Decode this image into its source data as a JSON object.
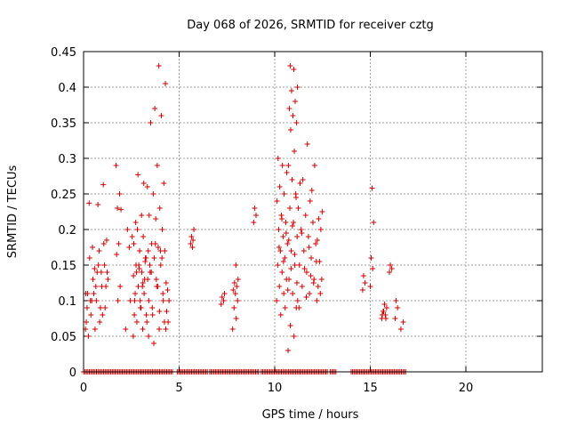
{
  "chart_data": {
    "type": "scatter",
    "title": "Day 068 of 2026, SRMTID for receiver cztg",
    "xlabel": "GPS time / hours",
    "ylabel": "SRMTID / TECUs",
    "xlim": [
      0,
      24
    ],
    "ylim": [
      0,
      0.45
    ],
    "x_ticks": [
      0,
      5,
      10,
      15,
      20
    ],
    "y_ticks": [
      0,
      0.05,
      0.1,
      0.15,
      0.2,
      0.25,
      0.3,
      0.35,
      0.4,
      0.45
    ],
    "y_tick_labels": [
      "0",
      "0.05",
      "0.1",
      "0.15",
      "0.2",
      "0.25",
      "0.3",
      "0.35",
      "0.4",
      "0.45"
    ],
    "grid": true,
    "marker": "+",
    "color": "#cc0000",
    "clusters": [
      {
        "x0": 0.1,
        "x1": 1.3,
        "ys": [
          0.06,
          0.07,
          0.08,
          0.09,
          0.1,
          0.11,
          0.12,
          0.13,
          0.14,
          0.15,
          0.16,
          0.18,
          0.06,
          0.07,
          0.09,
          0.1,
          0.12,
          0.14,
          0.05,
          0.08,
          0.11,
          0.13,
          0.17,
          0.1,
          0.15,
          0.12,
          0.09,
          0.14,
          0.175,
          0.185,
          0.235,
          0.237,
          0.263,
          0.145,
          0.11
        ]
      },
      {
        "x0": 1.7,
        "x1": 2.0,
        "ys": [
          0.29,
          0.25,
          0.23,
          0.228,
          0.18,
          0.165,
          0.12,
          0.1
        ]
      },
      {
        "x0": 2.2,
        "x1": 2.6,
        "ys": [
          0.06,
          0.1,
          0.2,
          0.19,
          0.175
        ]
      },
      {
        "x0": 2.6,
        "x1": 3.4,
        "ys": [
          0.05,
          0.06,
          0.07,
          0.08,
          0.09,
          0.1,
          0.11,
          0.12,
          0.13,
          0.14,
          0.15,
          0.16,
          0.17,
          0.18,
          0.19,
          0.2,
          0.07,
          0.09,
          0.11,
          0.13,
          0.15,
          0.17,
          0.12,
          0.14,
          0.16,
          0.1,
          0.08,
          0.265,
          0.277,
          0.26,
          0.22,
          0.21,
          0.155,
          0.145,
          0.135,
          0.125
        ]
      },
      {
        "x0": 3.4,
        "x1": 4.3,
        "ys": [
          0.05,
          0.06,
          0.08,
          0.1,
          0.12,
          0.14,
          0.15,
          0.16,
          0.17,
          0.175,
          0.18,
          0.2,
          0.215,
          0.22,
          0.23,
          0.25,
          0.265,
          0.29,
          0.35,
          0.36,
          0.37,
          0.405,
          0.43,
          0.09,
          0.11,
          0.13,
          0.15,
          0.17,
          0.04,
          0.07,
          0.12,
          0.14,
          0.16,
          0.18,
          0.1,
          0.085
        ]
      },
      {
        "x0": 4.3,
        "x1": 4.5,
        "ys": [
          0.06,
          0.07,
          0.085,
          0.1,
          0.115,
          0.125
        ]
      },
      {
        "x0": 5.6,
        "x1": 5.8,
        "ys": [
          0.18,
          0.185,
          0.19,
          0.2,
          0.175
        ]
      },
      {
        "x0": 7.2,
        "x1": 7.4,
        "ys": [
          0.095,
          0.1,
          0.105,
          0.11
        ]
      },
      {
        "x0": 7.8,
        "x1": 8.1,
        "ys": [
          0.06,
          0.075,
          0.09,
          0.1,
          0.11,
          0.115,
          0.12,
          0.125,
          0.13,
          0.15
        ]
      },
      {
        "x0": 8.9,
        "x1": 9.1,
        "ys": [
          0.21,
          0.22,
          0.23
        ]
      },
      {
        "x0": 10.1,
        "x1": 10.7,
        "ys": [
          0.1,
          0.11,
          0.12,
          0.13,
          0.14,
          0.15,
          0.16,
          0.17,
          0.18,
          0.19,
          0.2,
          0.21,
          0.22,
          0.24,
          0.25,
          0.26,
          0.28,
          0.29,
          0.3,
          0.09,
          0.08,
          0.115,
          0.155,
          0.175,
          0.195,
          0.215
        ]
      },
      {
        "x0": 10.7,
        "x1": 11.2,
        "ys": [
          0.03,
          0.05,
          0.065,
          0.09,
          0.11,
          0.13,
          0.15,
          0.17,
          0.19,
          0.21,
          0.23,
          0.25,
          0.27,
          0.29,
          0.31,
          0.34,
          0.35,
          0.36,
          0.37,
          0.38,
          0.395,
          0.4,
          0.425,
          0.43,
          0.245,
          0.205,
          0.185,
          0.165,
          0.145,
          0.125
        ]
      },
      {
        "x0": 11.2,
        "x1": 12.2,
        "ys": [
          0.1,
          0.11,
          0.12,
          0.13,
          0.14,
          0.15,
          0.16,
          0.17,
          0.18,
          0.19,
          0.2,
          0.21,
          0.22,
          0.23,
          0.24,
          0.27,
          0.29,
          0.32,
          0.265,
          0.255,
          0.145,
          0.155,
          0.175,
          0.195,
          0.125,
          0.105,
          0.09,
          0.135
        ]
      },
      {
        "x0": 12.2,
        "x1": 12.5,
        "ys": [
          0.1,
          0.11,
          0.12,
          0.13,
          0.155,
          0.185,
          0.2,
          0.215,
          0.225
        ]
      },
      {
        "x0": 14.6,
        "x1": 14.8,
        "ys": [
          0.115,
          0.125,
          0.135
        ]
      },
      {
        "x0": 15.0,
        "x1": 15.2,
        "ys": [
          0.12,
          0.145,
          0.16,
          0.21,
          0.258
        ]
      },
      {
        "x0": 15.6,
        "x1": 15.9,
        "ys": [
          0.075,
          0.08,
          0.085,
          0.09,
          0.095,
          0.08,
          0.075,
          0.085
        ]
      },
      {
        "x0": 16.0,
        "x1": 16.2,
        "ys": [
          0.14,
          0.145,
          0.15
        ]
      },
      {
        "x0": 16.3,
        "x1": 16.5,
        "ys": [
          0.075,
          0.09,
          0.1
        ]
      },
      {
        "x0": 16.6,
        "x1": 16.8,
        "ys": [
          0.06,
          0.07
        ]
      }
    ],
    "zero_segments": [
      [
        0.0,
        4.7
      ],
      [
        4.9,
        6.5
      ],
      [
        6.6,
        9.2
      ],
      [
        9.3,
        12.8
      ],
      [
        12.9,
        13.2
      ],
      [
        14.0,
        16.9
      ]
    ]
  }
}
